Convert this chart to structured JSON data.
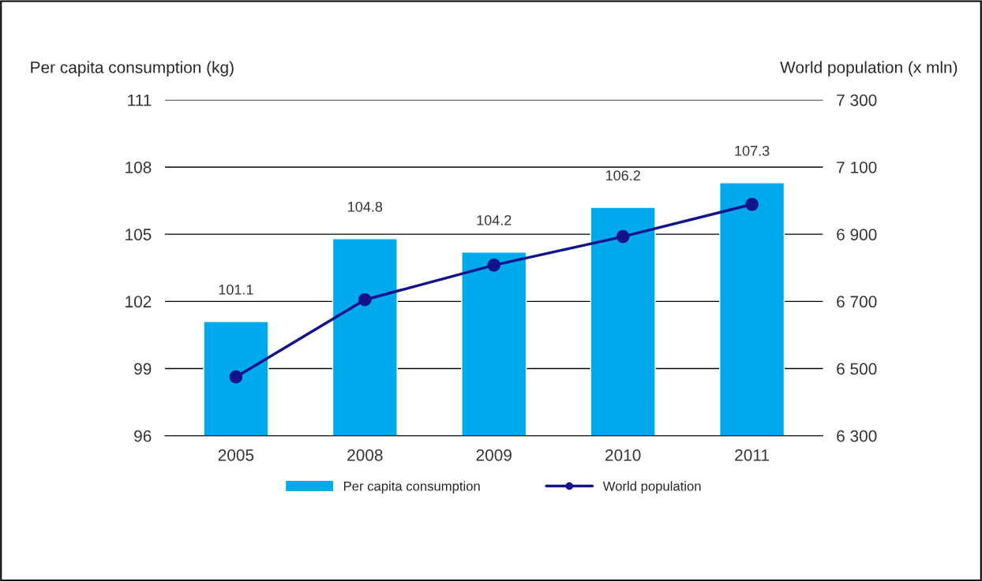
{
  "chart_data": {
    "type": "bar",
    "categories": [
      "2005",
      "2008",
      "2009",
      "2010",
      "2011"
    ],
    "ylabel": "Per capita consumption (kg)",
    "y2label": "World population (x mln)",
    "series": [
      {
        "name": "Per capita consumption",
        "color": "#00a9ec",
        "values": [
          101.1,
          104.8,
          104.2,
          106.2,
          107.3
        ],
        "data_labels": true
      },
      {
        "name": "World population",
        "type": "line",
        "axis": "y2",
        "color": "#13138a",
        "marker": "circle",
        "values": [
          6475,
          6705,
          6808,
          6893,
          6989
        ]
      }
    ],
    "ylim": [
      96,
      111
    ],
    "yticks": [
      96,
      99,
      102,
      105,
      108,
      111
    ],
    "y2lim": [
      6300,
      7300
    ],
    "y2ticks": [
      {
        "value": 6300,
        "label": "6 300"
      },
      {
        "value": 6500,
        "label": "6 500"
      },
      {
        "value": 6700,
        "label": "6 700"
      },
      {
        "value": 6900,
        "label": "6 900"
      },
      {
        "value": 7100,
        "label": "7 100"
      },
      {
        "value": 7300,
        "label": "7 300"
      }
    ],
    "grid": "y",
    "legend": "bottom"
  }
}
